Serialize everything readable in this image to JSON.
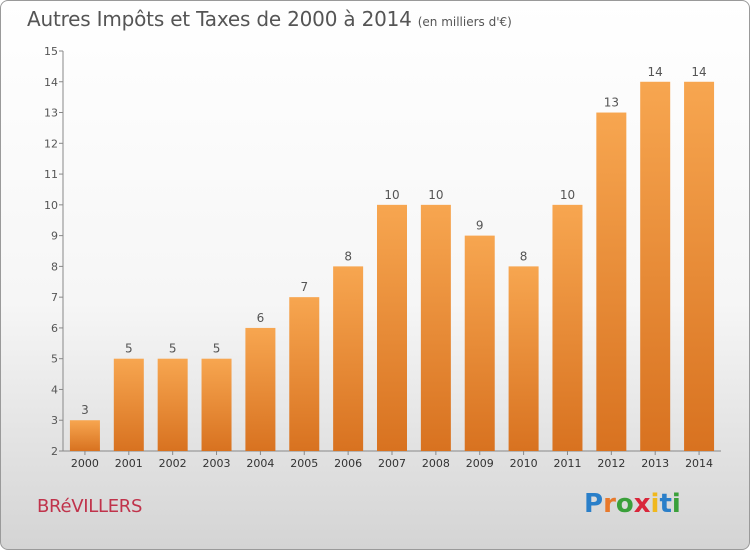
{
  "title": "Autres Impôts et Taxes de 2000 à 2014",
  "unit": "(en milliers d'€)",
  "commune": "BRéVILLERS",
  "logo": {
    "letters": [
      "P",
      "r",
      "o",
      "x",
      "i",
      "t",
      "i"
    ],
    "colors": [
      "#2a7fc9",
      "#e8792b",
      "#3aa03a",
      "#d9263a",
      "#f0b81d",
      "#2a7fc9",
      "#3aa03a"
    ]
  },
  "colors": {
    "bar_light": "#f7a650",
    "bar_dark": "#d87220",
    "text": "#555555",
    "commune": "#c0334b"
  },
  "chart_data": {
    "type": "bar",
    "categories": [
      "2000",
      "2001",
      "2002",
      "2003",
      "2004",
      "2005",
      "2006",
      "2007",
      "2008",
      "2009",
      "2010",
      "2011",
      "2012",
      "2013",
      "2014"
    ],
    "values": [
      3,
      5,
      5,
      5,
      6,
      7,
      8,
      10,
      10,
      9,
      8,
      10,
      13,
      14,
      14
    ],
    "ylim": [
      2,
      15
    ],
    "yticks": [
      2,
      3,
      4,
      5,
      6,
      7,
      8,
      9,
      10,
      11,
      12,
      13,
      14,
      15
    ],
    "grid": false,
    "legend": "none"
  }
}
